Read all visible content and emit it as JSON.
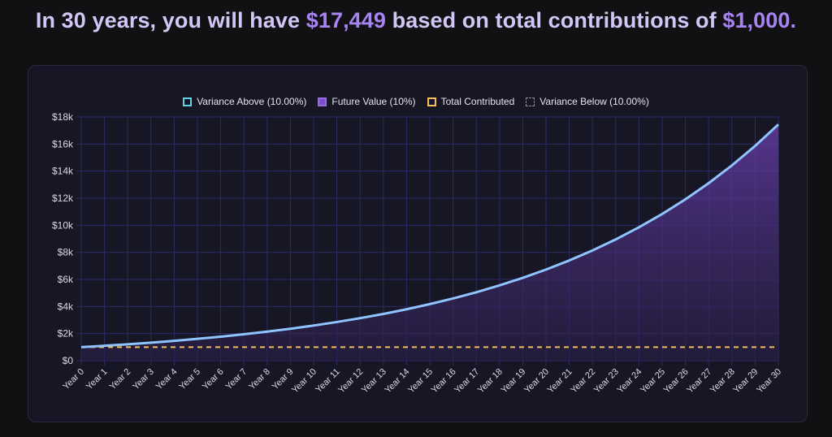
{
  "headline": {
    "prefix": "In 30 years, you will have ",
    "future_value": "$17,449",
    "middle": " based on total contributions of ",
    "contributions": "$1,000",
    "suffix": "."
  },
  "legend": {
    "variance_above": "Variance Above (10.00%)",
    "future_value": "Future Value (10%)",
    "total_contributed": "Total Contributed",
    "variance_below": "Variance Below (10.00%)"
  },
  "colors": {
    "line": "#8fc4ff",
    "area_top": "#6a3fb0",
    "area_bottom": "#2a1f4a",
    "contributed": "#f3c05b",
    "grid": "#2c2a66",
    "tick_text": "#dcdae8"
  },
  "chart_data": {
    "type": "line",
    "x_categories": [
      "Year 0",
      "Year 1",
      "Year 2",
      "Year 3",
      "Year 4",
      "Year 5",
      "Year 6",
      "Year 7",
      "Year 8",
      "Year 9",
      "Year 10",
      "Year 11",
      "Year 12",
      "Year 13",
      "Year 14",
      "Year 15",
      "Year 16",
      "Year 17",
      "Year 18",
      "Year 19",
      "Year 20",
      "Year 21",
      "Year 22",
      "Year 23",
      "Year 24",
      "Year 25",
      "Year 26",
      "Year 27",
      "Year 28",
      "Year 29",
      "Year 30"
    ],
    "y_ticks": [
      0,
      2000,
      4000,
      6000,
      8000,
      10000,
      12000,
      14000,
      16000,
      18000
    ],
    "y_tick_labels": [
      "$0",
      "$2k",
      "$4k",
      "$6k",
      "$8k",
      "$10k",
      "$12k",
      "$14k",
      "$16k",
      "$18k"
    ],
    "ylim": [
      0,
      18000
    ],
    "series": [
      {
        "name": "Future Value (10%)",
        "style": "solid line with filled area",
        "values": [
          1000,
          1100,
          1210,
          1331,
          1464,
          1611,
          1772,
          1949,
          2144,
          2358,
          2594,
          2853,
          3138,
          3452,
          3797,
          4177,
          4595,
          5054,
          5560,
          6116,
          6727,
          7400,
          8140,
          8954,
          9850,
          10835,
          11918,
          13110,
          14421,
          15863,
          17449
        ]
      },
      {
        "name": "Total Contributed",
        "style": "dashed line",
        "values": [
          1000,
          1000,
          1000,
          1000,
          1000,
          1000,
          1000,
          1000,
          1000,
          1000,
          1000,
          1000,
          1000,
          1000,
          1000,
          1000,
          1000,
          1000,
          1000,
          1000,
          1000,
          1000,
          1000,
          1000,
          1000,
          1000,
          1000,
          1000,
          1000,
          1000,
          1000
        ]
      }
    ],
    "legend_position": "top-center",
    "grid": true
  }
}
